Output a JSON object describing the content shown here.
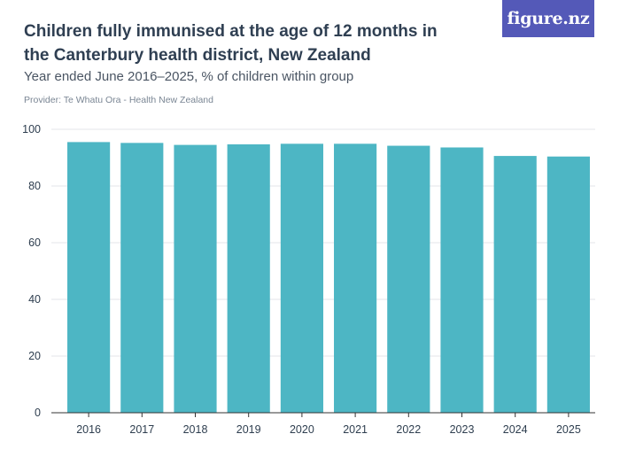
{
  "header": {
    "title": "Children fully immunised at the age of 12 months in the Canterbury health district, New Zealand",
    "subtitle": "Year ended June 2016–2025, % of children within group",
    "provider": "Provider: Te Whatu Ora - Health New Zealand",
    "logo_text": "figure.nz"
  },
  "colors": {
    "bar": "#4db6c4",
    "grid": "#e3e6ea",
    "axis": "#333333",
    "logo_bg": "#5459b8"
  },
  "chart_data": {
    "type": "bar",
    "categories": [
      "2016",
      "2017",
      "2018",
      "2019",
      "2020",
      "2021",
      "2022",
      "2023",
      "2024",
      "2025"
    ],
    "values": [
      95.5,
      95.2,
      94.5,
      94.7,
      94.9,
      94.9,
      94.2,
      93.6,
      90.6,
      90.4
    ],
    "ylim": [
      0,
      100
    ],
    "yticks": [
      0,
      20,
      40,
      60,
      80,
      100
    ],
    "grid": true,
    "legend": "none"
  }
}
